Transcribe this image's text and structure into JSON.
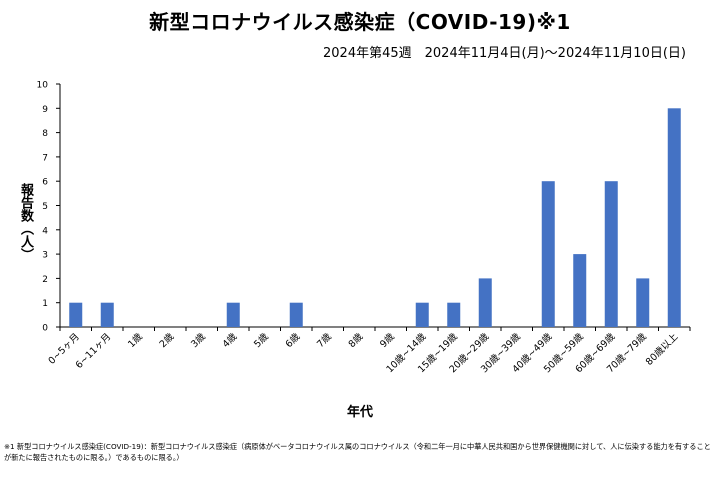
{
  "chart_data": {
    "type": "bar",
    "title": "新型コロナウイルス感染症（COVID-19)※1",
    "subtitle": "2024年第45週　2024年11月4日(月)～2024年11月10日(日)",
    "xlabel": "年代",
    "ylabel": "報告数（人）",
    "ylim": [
      0,
      10
    ],
    "yticks": [
      "0",
      "1",
      "2",
      "3",
      "4",
      "5",
      "6",
      "7",
      "8",
      "9",
      "10"
    ],
    "categories": [
      "0~5ヶ月",
      "6~11ヶ月",
      "1歳",
      "2歳",
      "3歳",
      "4歳",
      "5歳",
      "6歳",
      "7歳",
      "8歳",
      "9歳",
      "10歳~14歳",
      "15歳~19歳",
      "20歳~29歳",
      "30歳~39歳",
      "40歳~49歳",
      "50歳~59歳",
      "60歳~69歳",
      "70歳~79歳",
      "80歳以上"
    ],
    "values": [
      1,
      1,
      0,
      0,
      0,
      1,
      0,
      1,
      0,
      0,
      0,
      1,
      1,
      2,
      0,
      6,
      3,
      6,
      2,
      9
    ],
    "bar_color": "#4472C4",
    "grid": false,
    "legend": "none"
  },
  "footnote": "※1 新型コロナウイルス感染症(COVID-19)：新型コロナウイルス感染症（病原体がベータコロナウイルス属のコロナウイルス（令和二年一月に中華人民共和国から世界保健機関に対して、人に伝染する能力を有することが新たに報告されたものに限る。）であるものに限る。）"
}
